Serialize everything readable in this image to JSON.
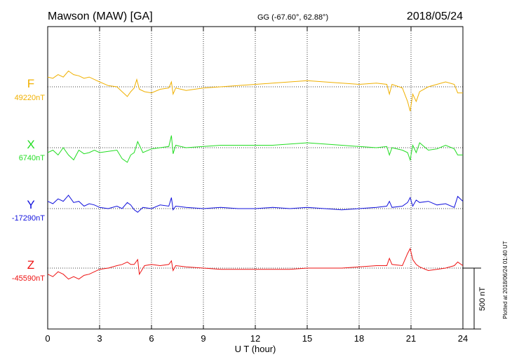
{
  "header": {
    "station": "Mawson (MAW)  [GA]",
    "coords": "GG (-67.60°,  62.88°)",
    "date": "2018/05/24"
  },
  "footer_note": "Plotted at 2018/06/24 01:40 UT",
  "chart_data": {
    "type": "line",
    "xlabel": "U T (hour)",
    "xlim": [
      0,
      24
    ],
    "xticks": [
      0,
      3,
      6,
      9,
      12,
      15,
      18,
      21,
      24
    ],
    "xtick_labels": [
      "0",
      "3",
      "6",
      "9",
      "12",
      "15",
      "18",
      "21",
      "24"
    ],
    "scale_bar_label": "500 nT",
    "scale_bar_nT": 500,
    "series": [
      {
        "name": "F",
        "baseline_label": "49220nT",
        "baseline_nT": 49220,
        "color": "#f0b000",
        "points": [
          [
            0,
            49300
          ],
          [
            0.3,
            49290
          ],
          [
            0.6,
            49320
          ],
          [
            0.9,
            49300
          ],
          [
            1.2,
            49350
          ],
          [
            1.5,
            49320
          ],
          [
            1.8,
            49310
          ],
          [
            2.1,
            49290
          ],
          [
            2.4,
            49300
          ],
          [
            2.7,
            49280
          ],
          [
            3.0,
            49260
          ],
          [
            3.5,
            49230
          ],
          [
            4.0,
            49220
          ],
          [
            4.3,
            49180
          ],
          [
            4.6,
            49140
          ],
          [
            4.8,
            49180
          ],
          [
            5.0,
            49210
          ],
          [
            5.15,
            49280
          ],
          [
            5.3,
            49200
          ],
          [
            5.6,
            49180
          ],
          [
            6.0,
            49170
          ],
          [
            6.5,
            49200
          ],
          [
            7.0,
            49210
          ],
          [
            7.15,
            49260
          ],
          [
            7.25,
            49160
          ],
          [
            7.4,
            49210
          ],
          [
            8.0,
            49190
          ],
          [
            9.0,
            49210
          ],
          [
            10.0,
            49220
          ],
          [
            11.0,
            49230
          ],
          [
            12.0,
            49240
          ],
          [
            13.0,
            49250
          ],
          [
            14.0,
            49260
          ],
          [
            15.0,
            49270
          ],
          [
            16.0,
            49260
          ],
          [
            17.0,
            49250
          ],
          [
            18.0,
            49240
          ],
          [
            19.0,
            49250
          ],
          [
            19.6,
            49240
          ],
          [
            19.75,
            49160
          ],
          [
            19.9,
            49240
          ],
          [
            20.5,
            49210
          ],
          [
            20.8,
            49100
          ],
          [
            20.95,
            49020
          ],
          [
            21.1,
            49160
          ],
          [
            21.3,
            49100
          ],
          [
            21.5,
            49180
          ],
          [
            22.0,
            49220
          ],
          [
            22.5,
            49240
          ],
          [
            23.0,
            49260
          ],
          [
            23.5,
            49240
          ],
          [
            23.7,
            49170
          ],
          [
            24.0,
            49170
          ]
        ]
      },
      {
        "name": "X",
        "baseline_label": "6740nT",
        "baseline_nT": 6740,
        "color": "#22dd22",
        "points": [
          [
            0,
            6700
          ],
          [
            0.3,
            6720
          ],
          [
            0.6,
            6680
          ],
          [
            0.9,
            6740
          ],
          [
            1.2,
            6680
          ],
          [
            1.5,
            6640
          ],
          [
            1.8,
            6720
          ],
          [
            2.1,
            6690
          ],
          [
            2.4,
            6700
          ],
          [
            2.7,
            6720
          ],
          [
            3.0,
            6700
          ],
          [
            3.5,
            6710
          ],
          [
            4.0,
            6720
          ],
          [
            4.3,
            6650
          ],
          [
            4.6,
            6620
          ],
          [
            4.8,
            6680
          ],
          [
            5.0,
            6700
          ],
          [
            5.2,
            6790
          ],
          [
            5.5,
            6700
          ],
          [
            6.0,
            6730
          ],
          [
            6.5,
            6740
          ],
          [
            7.0,
            6750
          ],
          [
            7.15,
            6840
          ],
          [
            7.25,
            6690
          ],
          [
            7.4,
            6760
          ],
          [
            8.0,
            6740
          ],
          [
            9.0,
            6750
          ],
          [
            10.0,
            6760
          ],
          [
            11.0,
            6760
          ],
          [
            12.0,
            6760
          ],
          [
            13.0,
            6760
          ],
          [
            14.0,
            6770
          ],
          [
            15.0,
            6780
          ],
          [
            16.0,
            6770
          ],
          [
            17.0,
            6760
          ],
          [
            18.0,
            6750
          ],
          [
            19.0,
            6740
          ],
          [
            19.6,
            6750
          ],
          [
            19.75,
            6680
          ],
          [
            19.9,
            6740
          ],
          [
            20.5,
            6720
          ],
          [
            20.8,
            6700
          ],
          [
            20.95,
            6640
          ],
          [
            21.1,
            6760
          ],
          [
            21.3,
            6700
          ],
          [
            21.5,
            6780
          ],
          [
            22.0,
            6720
          ],
          [
            22.5,
            6730
          ],
          [
            23.0,
            6760
          ],
          [
            23.5,
            6730
          ],
          [
            23.7,
            6680
          ],
          [
            24.0,
            6680
          ]
        ]
      },
      {
        "name": "Y",
        "baseline_label": "-17290nT",
        "baseline_nT": -17290,
        "color": "#1111dd",
        "points": [
          [
            0,
            -17230
          ],
          [
            0.3,
            -17250
          ],
          [
            0.6,
            -17210
          ],
          [
            0.9,
            -17230
          ],
          [
            1.2,
            -17180
          ],
          [
            1.5,
            -17240
          ],
          [
            1.8,
            -17230
          ],
          [
            2.1,
            -17270
          ],
          [
            2.4,
            -17250
          ],
          [
            2.7,
            -17260
          ],
          [
            3.0,
            -17280
          ],
          [
            3.5,
            -17290
          ],
          [
            4.0,
            -17270
          ],
          [
            4.3,
            -17290
          ],
          [
            4.6,
            -17240
          ],
          [
            4.8,
            -17260
          ],
          [
            5.0,
            -17300
          ],
          [
            5.2,
            -17320
          ],
          [
            5.5,
            -17280
          ],
          [
            6.0,
            -17290
          ],
          [
            6.5,
            -17260
          ],
          [
            7.0,
            -17270
          ],
          [
            7.15,
            -17200
          ],
          [
            7.25,
            -17300
          ],
          [
            7.4,
            -17270
          ],
          [
            8.0,
            -17280
          ],
          [
            9.0,
            -17290
          ],
          [
            10.0,
            -17280
          ],
          [
            11.0,
            -17290
          ],
          [
            12.0,
            -17290
          ],
          [
            13.0,
            -17280
          ],
          [
            14.0,
            -17290
          ],
          [
            15.0,
            -17280
          ],
          [
            16.0,
            -17290
          ],
          [
            17.0,
            -17300
          ],
          [
            18.0,
            -17290
          ],
          [
            19.0,
            -17280
          ],
          [
            19.6,
            -17270
          ],
          [
            19.75,
            -17230
          ],
          [
            19.9,
            -17280
          ],
          [
            20.5,
            -17270
          ],
          [
            20.8,
            -17240
          ],
          [
            20.95,
            -17200
          ],
          [
            21.1,
            -17270
          ],
          [
            21.3,
            -17220
          ],
          [
            21.5,
            -17240
          ],
          [
            22.0,
            -17230
          ],
          [
            22.5,
            -17260
          ],
          [
            23.0,
            -17250
          ],
          [
            23.5,
            -17280
          ],
          [
            23.7,
            -17190
          ],
          [
            24.0,
            -17230
          ]
        ]
      },
      {
        "name": "Z",
        "baseline_label": "-45590nT",
        "baseline_nT": -45590,
        "color": "#ee1111",
        "points": [
          [
            0,
            -45640
          ],
          [
            0.3,
            -45660
          ],
          [
            0.6,
            -45620
          ],
          [
            0.9,
            -45640
          ],
          [
            1.2,
            -45680
          ],
          [
            1.5,
            -45660
          ],
          [
            1.8,
            -45680
          ],
          [
            2.1,
            -45650
          ],
          [
            2.4,
            -45640
          ],
          [
            2.7,
            -45620
          ],
          [
            3.0,
            -45600
          ],
          [
            3.5,
            -45590
          ],
          [
            4.0,
            -45570
          ],
          [
            4.3,
            -45560
          ],
          [
            4.6,
            -45540
          ],
          [
            4.8,
            -45560
          ],
          [
            5.0,
            -45560
          ],
          [
            5.2,
            -45520
          ],
          [
            5.3,
            -45640
          ],
          [
            5.6,
            -45570
          ],
          [
            6.0,
            -45560
          ],
          [
            6.5,
            -45570
          ],
          [
            7.0,
            -45560
          ],
          [
            7.15,
            -45530
          ],
          [
            7.25,
            -45610
          ],
          [
            7.4,
            -45570
          ],
          [
            8.0,
            -45580
          ],
          [
            9.0,
            -45590
          ],
          [
            10.0,
            -45600
          ],
          [
            11.0,
            -45600
          ],
          [
            12.0,
            -45600
          ],
          [
            13.0,
            -45600
          ],
          [
            14.0,
            -45600
          ],
          [
            15.0,
            -45590
          ],
          [
            16.0,
            -45590
          ],
          [
            17.0,
            -45590
          ],
          [
            18.0,
            -45580
          ],
          [
            19.0,
            -45570
          ],
          [
            19.6,
            -45570
          ],
          [
            19.75,
            -45510
          ],
          [
            19.9,
            -45560
          ],
          [
            20.5,
            -45570
          ],
          [
            20.8,
            -45470
          ],
          [
            20.95,
            -45430
          ],
          [
            21.1,
            -45520
          ],
          [
            21.3,
            -45560
          ],
          [
            21.5,
            -45580
          ],
          [
            22.0,
            -45610
          ],
          [
            22.5,
            -45600
          ],
          [
            23.0,
            -45590
          ],
          [
            23.5,
            -45570
          ],
          [
            23.7,
            -45540
          ],
          [
            24.0,
            -45570
          ]
        ]
      }
    ]
  }
}
